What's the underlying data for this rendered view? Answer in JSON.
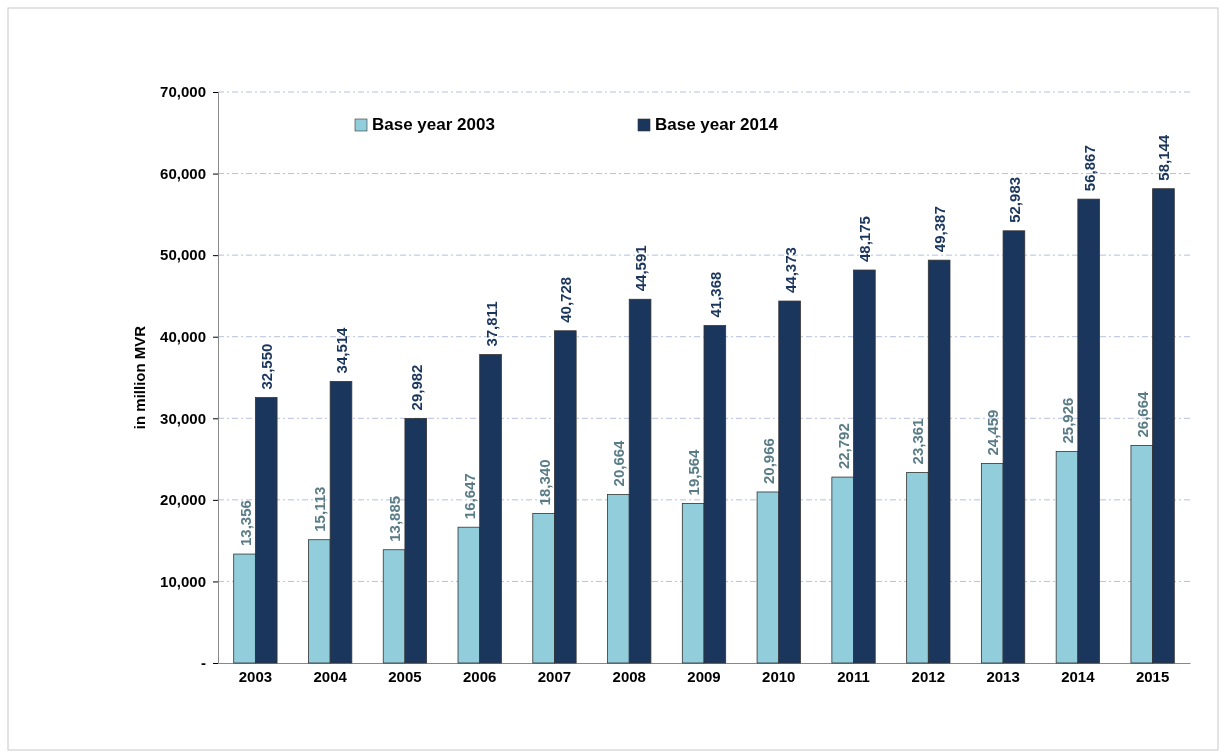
{
  "chart_data": {
    "type": "bar",
    "ylabel": "in million MVR",
    "categories": [
      "2003",
      "2004",
      "2005",
      "2006",
      "2007",
      "2008",
      "2009",
      "2010",
      "2011",
      "2012",
      "2013",
      "2014",
      "2015"
    ],
    "series": [
      {
        "name": "Base year 2003",
        "color": "#92cddc",
        "values": [
          13356,
          15113,
          13885,
          16647,
          18340,
          20664,
          19564,
          20966,
          22792,
          23361,
          24459,
          25926,
          26664
        ],
        "value_labels": [
          "13,356",
          "15,113",
          "13,885",
          "16,647",
          "18,340",
          "20,664",
          "19,564",
          "20,966",
          "22,792",
          "23,361",
          "24,459",
          "25,926",
          "26,664"
        ]
      },
      {
        "name": "Base year 2014",
        "color": "#1b365d",
        "values": [
          32550,
          34514,
          29982,
          37811,
          40728,
          44591,
          41368,
          44373,
          48175,
          49387,
          52983,
          56867,
          58144
        ],
        "value_labels": [
          "32,550",
          "34,514",
          "29,982",
          "37,811",
          "40,728",
          "44,591",
          "41,368",
          "44,373",
          "48,175",
          "49,387",
          "52,983",
          "56,867",
          "58,144"
        ]
      }
    ],
    "ylim": [
      0,
      70000
    ],
    "yticks": [
      {
        "value": 0,
        "label": "-"
      },
      {
        "value": 10000,
        "label": "10,000"
      },
      {
        "value": 20000,
        "label": "20,000"
      },
      {
        "value": 30000,
        "label": "30,000"
      },
      {
        "value": 40000,
        "label": "40,000"
      },
      {
        "value": 50000,
        "label": "50,000"
      },
      {
        "value": 60000,
        "label": "60,000"
      },
      {
        "value": 70000,
        "label": "70,000"
      }
    ],
    "grid": "y",
    "legend": "top left"
  }
}
